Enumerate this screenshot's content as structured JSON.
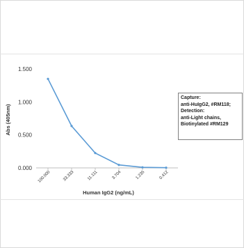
{
  "chart_data": {
    "type": "line",
    "x": [
      "100.000",
      "33.333",
      "11.111",
      "3.704",
      "1.235",
      "0.412"
    ],
    "series": [
      {
        "values": [
          1.35,
          0.635,
          0.225,
          0.045,
          0.008,
          0.003
        ],
        "color": "#5b9bd5"
      }
    ],
    "xlabel": "Human IgG2 (ng/mL)",
    "ylabel": "Abs (405nm)",
    "ylim": [
      0,
      1.5
    ],
    "yticks": [
      "0.000",
      "0.500",
      "1.000",
      "1.500"
    ],
    "ytick_values": [
      0,
      0.5,
      1.0,
      1.5
    ],
    "grid": false,
    "legend_placement": "right",
    "annotation_lines": [
      "Capture:",
      "anti-HuIgG2, #RM118;",
      "Detection:",
      "anti-Light chains,",
      "Biotinylated #RM129"
    ]
  }
}
